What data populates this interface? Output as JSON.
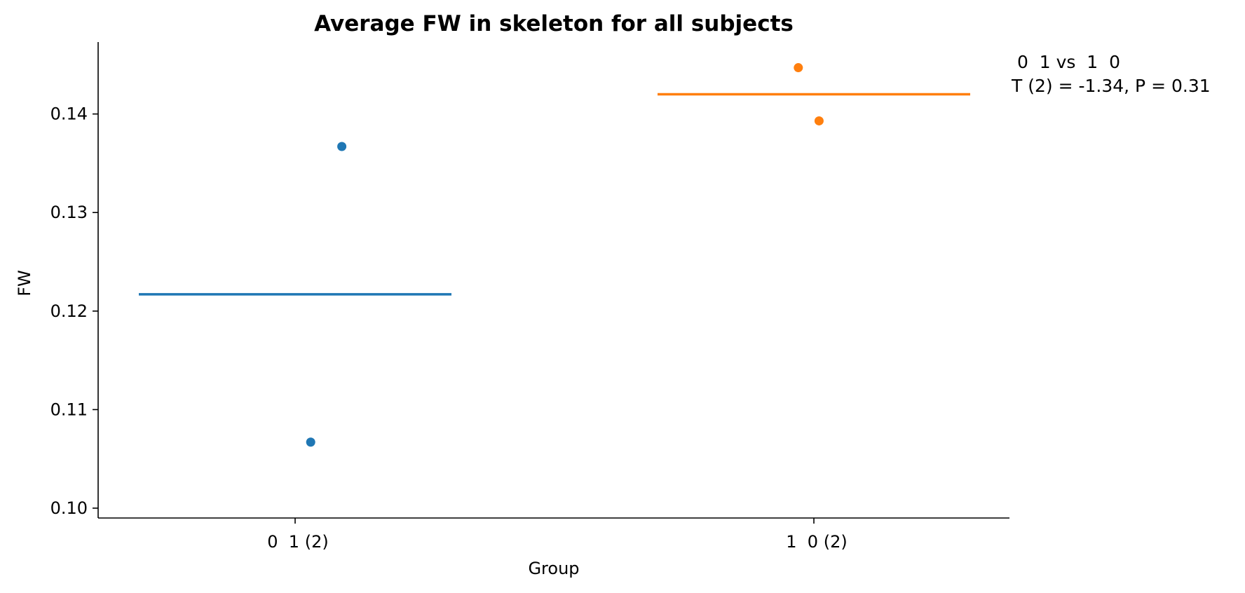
{
  "chart_data": {
    "type": "scatter",
    "title": "Average FW in skeleton for all subjects",
    "xlabel": "Group",
    "ylabel": "FW",
    "categories": [
      "0  1 (2)",
      "1  0 (2)"
    ],
    "ylim": [
      0.099,
      0.1473
    ],
    "yticks": [
      0.1,
      0.11,
      0.12,
      0.13,
      0.14
    ],
    "ytick_labels": [
      "0.10",
      "0.11",
      "0.12",
      "0.13",
      "0.14"
    ],
    "grid": false,
    "series": [
      {
        "category": "0  1 (2)",
        "color": "#1f77b4",
        "mean": 0.1217,
        "points": [
          {
            "jitter": 0.03,
            "y": 0.1067
          },
          {
            "jitter": 0.09,
            "y": 0.1367
          }
        ]
      },
      {
        "category": "1  0 (2)",
        "color": "#ff7f0e",
        "mean": 0.142,
        "points": [
          {
            "jitter": -0.03,
            "y": 0.1447
          },
          {
            "jitter": 0.01,
            "y": 0.1393
          }
        ]
      }
    ],
    "annotation": {
      "line1": " 0  1 vs  1  0",
      "line2": "T (2) = -1.34, P = 0.31"
    }
  }
}
